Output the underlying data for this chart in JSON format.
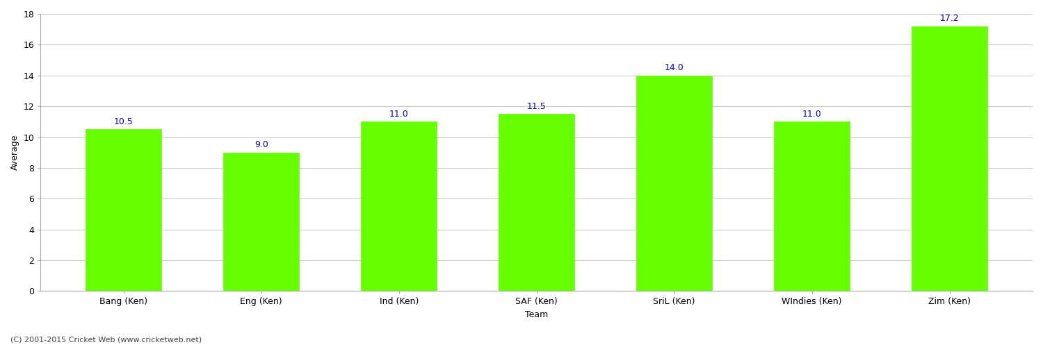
{
  "title": "",
  "categories": [
    "Bang (Ken)",
    "Eng (Ken)",
    "Ind (Ken)",
    "SAF (Ken)",
    "SriL (Ken)",
    "WIndies (Ken)",
    "Zim (Ken)"
  ],
  "values": [
    10.5,
    9.0,
    11.0,
    11.5,
    14.0,
    11.0,
    17.2
  ],
  "bar_color": "#66ff00",
  "bar_edge_color": "#66ff00",
  "xlabel": "Team",
  "ylabel": "Average",
  "ylim": [
    0,
    18
  ],
  "yticks": [
    0,
    2,
    4,
    6,
    8,
    10,
    12,
    14,
    16,
    18
  ],
  "label_color": "#0000cc",
  "label_fontsize": 9,
  "axis_fontsize": 9,
  "bg_color": "#ffffff",
  "grid_color": "#cccccc",
  "footer_text": "(C) 2001-2015 Cricket Web (www.cricketweb.net)",
  "footer_fontsize": 8,
  "footer_color": "#444444",
  "bar_width": 0.55,
  "spine_color": "#aaaaaa"
}
